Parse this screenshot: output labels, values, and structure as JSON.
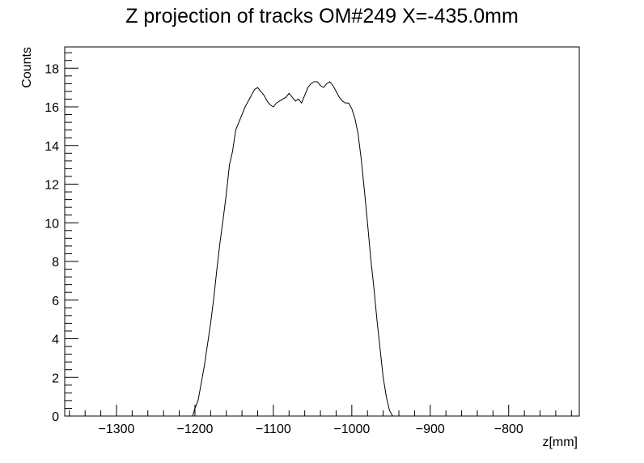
{
  "chart_data": {
    "type": "line",
    "title": "Z projection of tracks OM#249 X=-435.0mm",
    "xlabel": "z[mm]",
    "ylabel": "Counts",
    "xlim": [
      -1366,
      -710
    ],
    "ylim": [
      0,
      19.1
    ],
    "grid": false,
    "x_ticks": [
      -1300,
      -1200,
      -1100,
      -1000,
      -900,
      -800
    ],
    "x_tick_labels": [
      "−1300",
      "−1200",
      "−1100",
      "−1000",
      "−900",
      "−800"
    ],
    "y_ticks": [
      0,
      2,
      4,
      6,
      8,
      10,
      12,
      14,
      16,
      18
    ],
    "y_tick_labels": [
      "0",
      "2",
      "4",
      "6",
      "8",
      "10",
      "12",
      "14",
      "16",
      "18"
    ],
    "series": [
      {
        "x": [
          -1203,
          -1200,
          -1196,
          -1192,
          -1188,
          -1184,
          -1180,
          -1176,
          -1172,
          -1168,
          -1164,
          -1160,
          -1156,
          -1152,
          -1148,
          -1144,
          -1140,
          -1136,
          -1132,
          -1128,
          -1124,
          -1120,
          -1116,
          -1112,
          -1108,
          -1104,
          -1100,
          -1096,
          -1092,
          -1088,
          -1084,
          -1080,
          -1076,
          -1072,
          -1068,
          -1064,
          -1060,
          -1056,
          -1052,
          -1048,
          -1044,
          -1040,
          -1036,
          -1032,
          -1028,
          -1024,
          -1020,
          -1016,
          -1012,
          -1008,
          -1004,
          -1000,
          -996,
          -992,
          -988,
          -984,
          -980,
          -976,
          -972,
          -968,
          -964,
          -960,
          -956,
          -952,
          -948,
          -944,
          -940,
          -936,
          -932,
          -928,
          -924,
          -920,
          -916,
          -912,
          -908,
          -904,
          -900,
          -896,
          -892,
          -888,
          -884,
          -880,
          -877
        ],
        "values": [
          0.0,
          0.4,
          0.8,
          1.7,
          2.6,
          3.7,
          4.8,
          6.1,
          7.6,
          9.0,
          10.2,
          11.5,
          13.0,
          13.7,
          14.8,
          15.2,
          15.6,
          16.0,
          16.3,
          16.6,
          16.9,
          17.0,
          16.8,
          16.6,
          16.3,
          16.1,
          16.0,
          16.2,
          16.3,
          16.4,
          16.5,
          16.7,
          16.5,
          16.3,
          16.4,
          16.2,
          16.6,
          17.0,
          17.2,
          17.3,
          17.3,
          17.1,
          17.0,
          17.2,
          17.3,
          17.1,
          16.8,
          16.5,
          16.3,
          16.2,
          16.2,
          15.9,
          15.4,
          14.6,
          13.3,
          11.7,
          10.0,
          8.2,
          6.7,
          5.0,
          3.5,
          2.0,
          1.0,
          0.3,
          0.0,
          0.0,
          0.0,
          0.0,
          0.0,
          0.0,
          0.0,
          0.0,
          0.0,
          0.0,
          0.0,
          0.0,
          0.0,
          0.0,
          0.0,
          0.0,
          0.0,
          0.0,
          0.0
        ]
      }
    ]
  }
}
